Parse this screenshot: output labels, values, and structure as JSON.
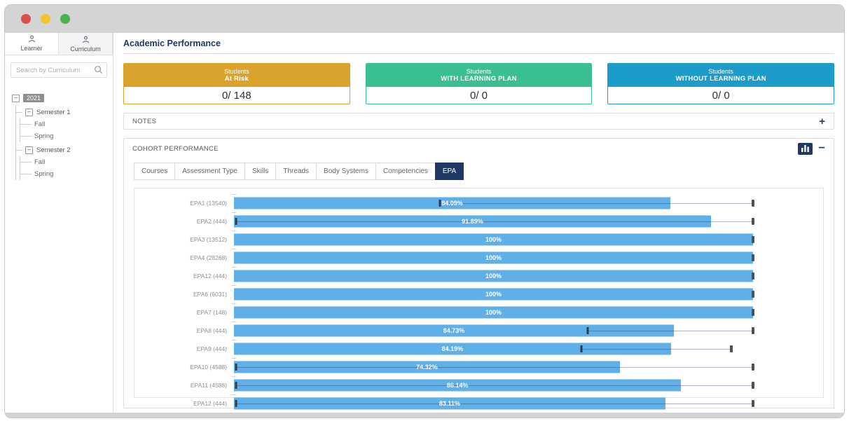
{
  "window": {
    "buttons": [
      "close",
      "minimize",
      "maximize"
    ]
  },
  "sidebar": {
    "tabs": [
      {
        "label": "Learner",
        "active": true
      },
      {
        "label": "Curriculum",
        "active": false
      }
    ],
    "search": {
      "placeholder": "Search by Curriculum"
    },
    "tree": {
      "root": "2021",
      "semesters": [
        {
          "label": "Semester 1",
          "children": [
            "Fall",
            "Spring"
          ]
        },
        {
          "label": "Semester 2",
          "children": [
            "Fall",
            "Spring"
          ]
        }
      ]
    }
  },
  "header": {
    "title": "Academic Performance"
  },
  "cards": [
    {
      "line1": "Students",
      "line2": "At Risk",
      "value": "0/ 148",
      "color": "#daa32c"
    },
    {
      "line1": "Students",
      "line2": "WITH LEARNING PLAN",
      "value": "0/ 0",
      "color": "#3abf93"
    },
    {
      "line1": "Students",
      "line2": "WITHOUT LEARNING PLAN",
      "value": "0/ 0",
      "color": "#1d9bc9"
    }
  ],
  "notes": {
    "label": "NOTES",
    "add_label": "+"
  },
  "cohort": {
    "label": "COHORT PERFORMANCE",
    "collapse_label": "−",
    "tabs": [
      {
        "label": "Courses",
        "active": false
      },
      {
        "label": "Assessment Type",
        "active": false
      },
      {
        "label": "Skills",
        "active": false
      },
      {
        "label": "Threads",
        "active": false
      },
      {
        "label": "Body Systems",
        "active": false
      },
      {
        "label": "Competencies",
        "active": false
      },
      {
        "label": "EPA",
        "active": true
      }
    ]
  },
  "chart_data": {
    "type": "bar",
    "orientation": "horizontal",
    "title": "",
    "xlim": [
      0,
      100
    ],
    "bar_color": "#5fafe9",
    "categories": [
      "EPA1 (13540)",
      "EPA2 (444)",
      "EPA3 (13512)",
      "EPA4 (28268)",
      "EPA12 (444)",
      "EPA6 (6031)",
      "EPA7 (148)",
      "EPA8 (444)",
      "EPA9 (444)",
      "EPA10 (4588)",
      "EPA11 (4588)",
      "EPA12 (444)"
    ],
    "values": [
      84.09,
      91.89,
      100,
      100,
      100,
      100,
      100,
      84.73,
      84.19,
      74.32,
      86.14,
      83.11
    ],
    "value_labels": [
      "84.09%",
      "91.89%",
      "100%",
      "100%",
      "100%",
      "100%",
      "100%",
      "84.73%",
      "84.19%",
      "74.32%",
      "86.14%",
      "83.11%"
    ],
    "benchmark_tick_pct": [
      39.7,
      0.4,
      100,
      100,
      100,
      100,
      100,
      68.1,
      67.0,
      0.4,
      0.4,
      0.4
    ],
    "max_marker_pct": [
      100,
      100,
      100,
      100,
      100,
      100,
      100,
      100,
      95.8,
      100,
      100,
      100
    ]
  }
}
